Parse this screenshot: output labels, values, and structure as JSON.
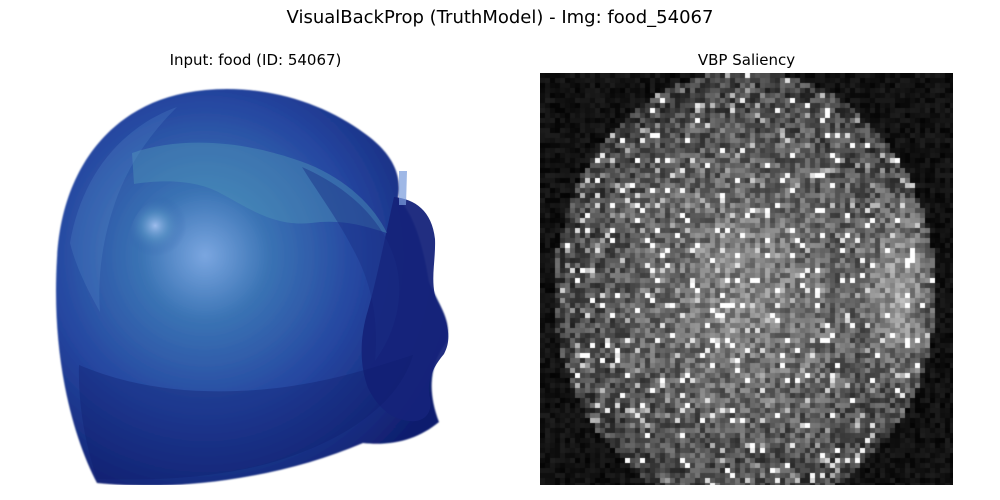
{
  "figure": {
    "title": "VisualBackProp (TruthModel) - Img: food_54067"
  },
  "panels": {
    "input": {
      "title": "Input: food (ID: 54067)",
      "colors": {
        "background": "#ffffff",
        "food_dark": "#15267a",
        "food_mid": "#2746a0",
        "food_light": "#4b8ec3",
        "highlight": "#8fb8e8"
      }
    },
    "saliency": {
      "title": "VBP Saliency",
      "colormap": "gray",
      "colors": {
        "background": "#0b0b0b",
        "bright": "#ffffff"
      }
    }
  }
}
